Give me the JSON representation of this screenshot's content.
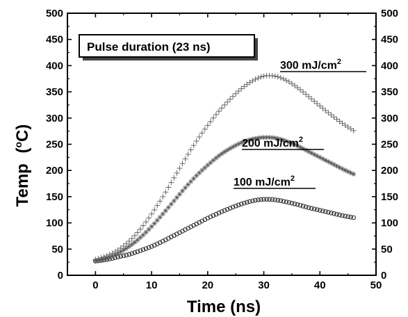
{
  "chart_data": {
    "type": "scatter",
    "xlabel": "Time (ns)",
    "ylabel": "Temp",
    "ylabel_unit": "(",
    "ylabel_degree": "o",
    "ylabel_unit_tail": "C)",
    "xlim": [
      -5,
      50
    ],
    "ylim": [
      0,
      500
    ],
    "x_ticks": [
      0,
      10,
      20,
      30,
      40,
      50
    ],
    "y_ticks": [
      0,
      50,
      100,
      150,
      200,
      250,
      300,
      350,
      400,
      450,
      500
    ],
    "right_y_ticks": true,
    "grid": false,
    "annotation": "Pulse duration (23 ns)",
    "series": [
      {
        "name": "100 mJ/cm",
        "name_sup": "2",
        "marker": "circle",
        "color": "#333333",
        "x": [
          0,
          2,
          4,
          6,
          8,
          10,
          12,
          14,
          16,
          18,
          20,
          22,
          24,
          26,
          28,
          30,
          32,
          34,
          36,
          38,
          40,
          42,
          44,
          46
        ],
        "y": [
          27,
          30,
          35,
          40,
          47,
          55,
          65,
          76,
          87,
          98,
          109,
          119,
          128,
          136,
          142,
          145,
          144,
          140,
          135,
          129,
          124,
          119,
          114,
          110
        ]
      },
      {
        "name": "200 mJ/cm",
        "name_sup": "2",
        "marker": "star",
        "color": "#555555",
        "x": [
          0,
          2,
          4,
          6,
          8,
          10,
          12,
          14,
          16,
          18,
          20,
          22,
          24,
          26,
          28,
          30,
          32,
          34,
          36,
          38,
          40,
          42,
          44,
          46
        ],
        "y": [
          28,
          33,
          42,
          55,
          72,
          93,
          117,
          142,
          167,
          190,
          210,
          228,
          242,
          253,
          260,
          263,
          262,
          256,
          247,
          236,
          225,
          214,
          203,
          193
        ]
      },
      {
        "name": "300 mJ/cm",
        "name_sup": "2",
        "marker": "plus",
        "color": "#666666",
        "x": [
          0,
          2,
          4,
          6,
          8,
          10,
          12,
          14,
          16,
          18,
          20,
          22,
          24,
          26,
          28,
          30,
          32,
          34,
          36,
          38,
          40,
          42,
          44,
          46
        ],
        "y": [
          30,
          37,
          48,
          65,
          88,
          117,
          150,
          186,
          222,
          256,
          286,
          313,
          336,
          356,
          371,
          380,
          380,
          372,
          358,
          341,
          323,
          306,
          290,
          276
        ]
      }
    ]
  }
}
